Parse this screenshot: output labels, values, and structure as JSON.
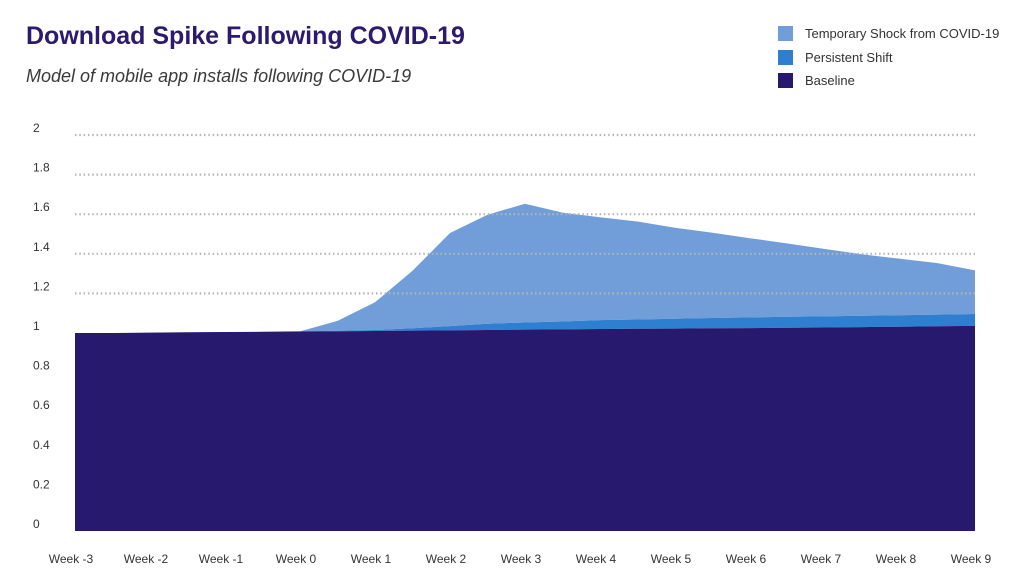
{
  "chart_data": {
    "type": "area",
    "stacked": true,
    "title": "Download Spike Following COVID-19",
    "subtitle": "Model of mobile app installs following COVID-19",
    "categories": [
      "Week -3",
      "Week -2",
      "Week -1",
      "Week 0",
      "Week 1",
      "Week 2",
      "Week 3",
      "Week 4",
      "Week 5",
      "Week 6",
      "Week 7",
      "Week 8",
      "Week 9"
    ],
    "x": [
      -3,
      -2.5,
      -2,
      -1.5,
      -1,
      -0.5,
      0,
      0.5,
      1,
      1.5,
      2,
      2.5,
      3,
      3.5,
      4,
      4.5,
      5,
      5.5,
      6,
      6.5,
      7,
      7.5,
      8,
      8.5,
      9
    ],
    "series": [
      {
        "name": "Baseline",
        "color": "#26196e",
        "values": [
          1.0,
          1.0,
          1.002,
          1.004,
          1.005,
          1.006,
          1.008,
          1.009,
          1.01,
          1.012,
          1.013,
          1.015,
          1.017,
          1.018,
          1.02,
          1.021,
          1.022,
          1.024,
          1.025,
          1.027,
          1.028,
          1.03,
          1.032,
          1.034,
          1.036
        ]
      },
      {
        "name": "Persistent Shift",
        "color": "#2e7fd0",
        "values": [
          0,
          0,
          0,
          0,
          0,
          0,
          0,
          0.002,
          0.005,
          0.012,
          0.022,
          0.032,
          0.036,
          0.04,
          0.045,
          0.047,
          0.05,
          0.052,
          0.054,
          0.055,
          0.056,
          0.057,
          0.058,
          0.059,
          0.06
        ]
      },
      {
        "name": "Temporary Shock from COVID-19",
        "color": "#719ed9",
        "values": [
          0,
          0,
          0,
          0,
          0,
          0,
          0,
          0.05,
          0.14,
          0.29,
          0.47,
          0.55,
          0.6,
          0.55,
          0.52,
          0.495,
          0.46,
          0.43,
          0.4,
          0.37,
          0.34,
          0.31,
          0.285,
          0.26,
          0.22
        ]
      }
    ],
    "yticks": [
      "0",
      "0.2",
      "0.4",
      "0.6",
      "0.8",
      "1",
      "1.2",
      "1.4",
      "1.6",
      "1.8",
      "2"
    ],
    "ylim": [
      0,
      2
    ],
    "grid": {
      "horizontal_dotted": true,
      "above": 1
    },
    "legend_position": "top-right"
  }
}
